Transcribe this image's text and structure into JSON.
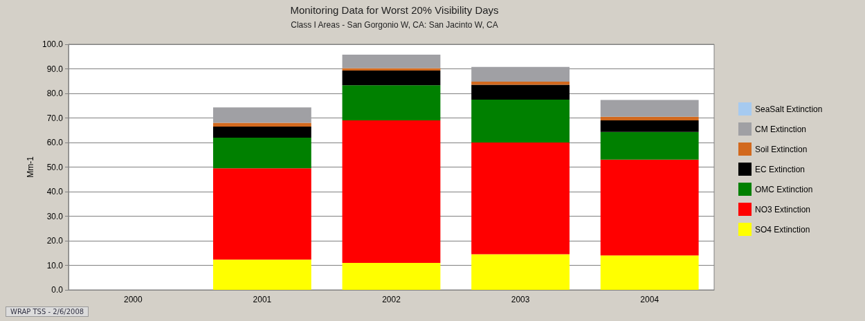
{
  "chart_data": {
    "type": "bar",
    "title": "Monitoring Data for Worst 20% Visibility Days",
    "subtitle": "Class I Areas - San Gorgonio W, CA: San Jacinto W, CA",
    "ylabel": "Mm-1",
    "categories": [
      "2000",
      "2001",
      "2002",
      "2003",
      "2004"
    ],
    "stacked": true,
    "ylim": [
      0,
      100
    ],
    "yticks": [
      {
        "value": 0,
        "label": "0.0"
      },
      {
        "value": 10,
        "label": "10.0"
      },
      {
        "value": 20,
        "label": "20.0"
      },
      {
        "value": 30,
        "label": "30.0"
      },
      {
        "value": 40,
        "label": "40.0"
      },
      {
        "value": 50,
        "label": "50.0"
      },
      {
        "value": 60,
        "label": "60.0"
      },
      {
        "value": 70,
        "label": "70.0"
      },
      {
        "value": 80,
        "label": "80.0"
      },
      {
        "value": 90,
        "label": "90.0"
      },
      {
        "value": 100,
        "label": "100.0"
      }
    ],
    "grid": "y",
    "legend": "right",
    "annotations": [
      "WRAP TSS - 2/6/2008"
    ],
    "series": [
      {
        "name": "SO4 Extinction",
        "color": "#ffff00",
        "values": [
          null,
          12.3,
          11.0,
          14.5,
          14.0
        ]
      },
      {
        "name": "NO3 Extinction",
        "color": "#ff0000",
        "values": [
          null,
          37.2,
          58.0,
          45.5,
          39.0
        ]
      },
      {
        "name": "OMC Extinction",
        "color": "#008000",
        "values": [
          null,
          12.5,
          14.3,
          17.5,
          11.3
        ]
      },
      {
        "name": "EC Extinction",
        "color": "#000000",
        "values": [
          null,
          4.5,
          6.0,
          6.0,
          4.7
        ]
      },
      {
        "name": "Soil Extinction",
        "color": "#d2691e",
        "values": [
          null,
          1.5,
          1.0,
          1.3,
          1.5
        ]
      },
      {
        "name": "CM Extinction",
        "color": "#a0a0a4",
        "values": [
          null,
          6.3,
          5.5,
          6.0,
          6.8
        ]
      },
      {
        "name": "SeaSalt Extinction",
        "color": "#a6caf0",
        "values": [
          null,
          0,
          0,
          0,
          0
        ]
      }
    ]
  }
}
